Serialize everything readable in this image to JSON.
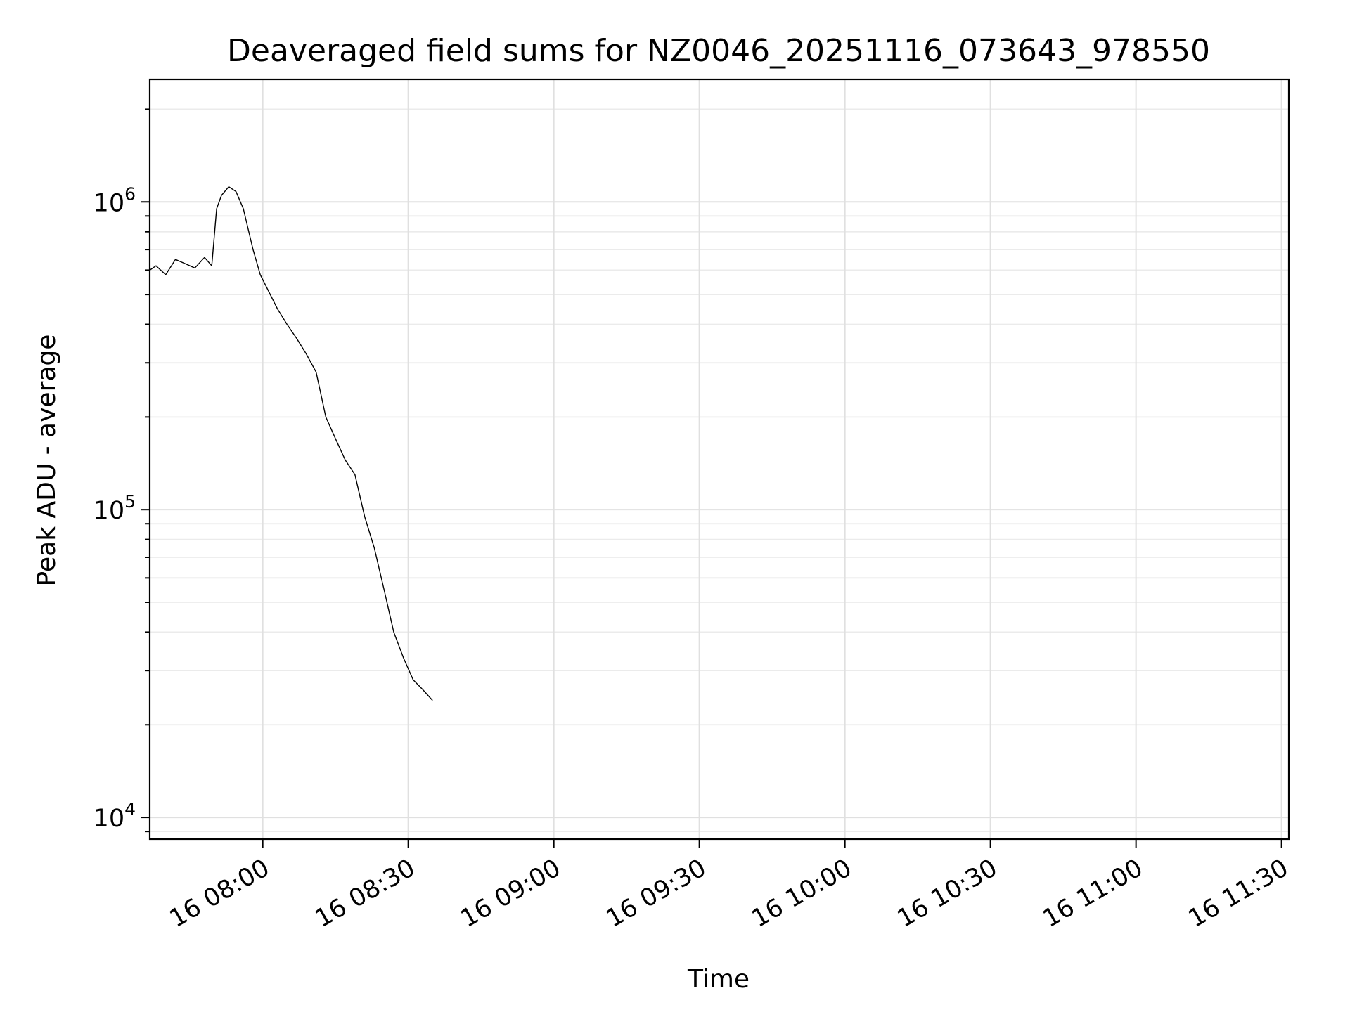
{
  "chart_data": {
    "type": "line",
    "title": "Deaveraged field sums for NZ0046_20251116_073643_978550",
    "xlabel": "Time",
    "ylabel": "Peak ADU - average",
    "yscale": "log",
    "ylim": [
      8500,
      2500000
    ],
    "xlim": [
      "2025-11-16 07:36:43",
      "2025-11-16 11:31:30"
    ],
    "grid": true,
    "line_color": "#000000",
    "y_ticks": [
      {
        "value": 10000,
        "base": "10",
        "exp": "4"
      },
      {
        "value": 100000,
        "base": "10",
        "exp": "5"
      },
      {
        "value": 1000000,
        "base": "10",
        "exp": "6"
      }
    ],
    "x_ticks": [
      {
        "value": "2025-11-16 08:00",
        "label": "16 08:00"
      },
      {
        "value": "2025-11-16 08:30",
        "label": "16 08:30"
      },
      {
        "value": "2025-11-16 09:00",
        "label": "16 09:00"
      },
      {
        "value": "2025-11-16 09:30",
        "label": "16 09:30"
      },
      {
        "value": "2025-11-16 10:00",
        "label": "16 10:00"
      },
      {
        "value": "2025-11-16 10:30",
        "label": "16 10:30"
      },
      {
        "value": "2025-11-16 11:00",
        "label": "16 11:00"
      },
      {
        "value": "2025-11-16 11:30",
        "label": "16 11:30"
      }
    ],
    "series": [
      {
        "values": [
          [
            "2025-11-16 07:36:43",
            600000
          ],
          [
            "2025-11-16 07:38:00",
            620000
          ],
          [
            "2025-11-16 07:40:00",
            580000
          ],
          [
            "2025-11-16 07:42:00",
            650000
          ],
          [
            "2025-11-16 07:44:00",
            630000
          ],
          [
            "2025-11-16 07:46:00",
            610000
          ],
          [
            "2025-11-16 07:48:00",
            660000
          ],
          [
            "2025-11-16 07:49:30",
            620000
          ],
          [
            "2025-11-16 07:50:30",
            950000
          ],
          [
            "2025-11-16 07:51:30",
            1050000
          ],
          [
            "2025-11-16 07:53:00",
            1120000
          ],
          [
            "2025-11-16 07:54:30",
            1080000
          ],
          [
            "2025-11-16 07:56:00",
            950000
          ],
          [
            "2025-11-16 07:58:00",
            700000
          ],
          [
            "2025-11-16 07:59:30",
            580000
          ],
          [
            "2025-11-16 08:01:00",
            520000
          ],
          [
            "2025-11-16 08:03:00",
            450000
          ],
          [
            "2025-11-16 08:05:00",
            400000
          ],
          [
            "2025-11-16 08:07:00",
            360000
          ],
          [
            "2025-11-16 08:09:00",
            320000
          ],
          [
            "2025-11-16 08:11:00",
            280000
          ],
          [
            "2025-11-16 08:13:00",
            200000
          ],
          [
            "2025-11-16 08:15:00",
            170000
          ],
          [
            "2025-11-16 08:17:00",
            145000
          ],
          [
            "2025-11-16 08:19:00",
            130000
          ],
          [
            "2025-11-16 08:21:00",
            95000
          ],
          [
            "2025-11-16 08:23:00",
            75000
          ],
          [
            "2025-11-16 08:25:00",
            55000
          ],
          [
            "2025-11-16 08:27:00",
            40000
          ],
          [
            "2025-11-16 08:29:00",
            33000
          ],
          [
            "2025-11-16 08:31:00",
            28000
          ],
          [
            "2025-11-16 08:33:00",
            26000
          ],
          [
            "2025-11-16 08:35:00",
            24000
          ]
        ]
      }
    ]
  }
}
